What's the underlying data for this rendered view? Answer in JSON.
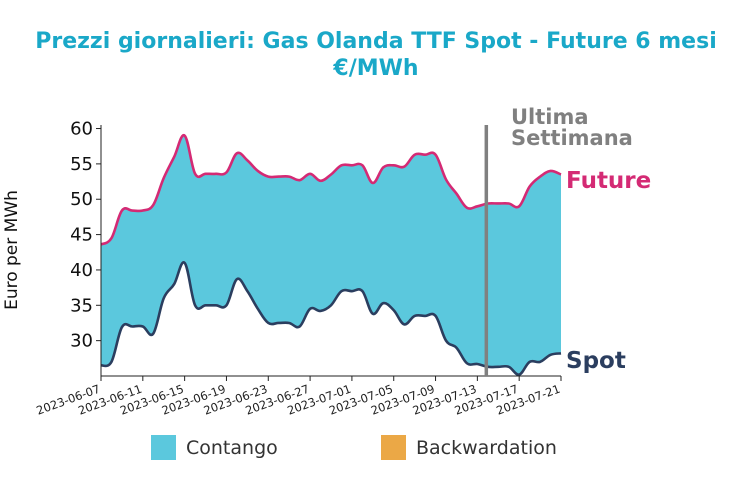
{
  "chart_data": {
    "type": "area",
    "title": "Prezzi giornalieri: Gas Olanda TTF Spot - Future 6 mesi",
    "subtitle": "€/MWh",
    "ylabel": "Euro per MWh",
    "xlabel": "",
    "ylim": [
      25,
      60.5
    ],
    "yticks": [
      30,
      35,
      40,
      45,
      50,
      55,
      60
    ],
    "x": [
      "2023-06-07",
      "2023-06-08",
      "2023-06-09",
      "2023-06-10",
      "2023-06-11",
      "2023-06-12",
      "2023-06-13",
      "2023-06-14",
      "2023-06-15",
      "2023-06-16",
      "2023-06-17",
      "2023-06-18",
      "2023-06-19",
      "2023-06-20",
      "2023-06-21",
      "2023-06-22",
      "2023-06-23",
      "2023-06-24",
      "2023-06-25",
      "2023-06-26",
      "2023-06-27",
      "2023-06-28",
      "2023-06-29",
      "2023-06-30",
      "2023-07-01",
      "2023-07-02",
      "2023-07-03",
      "2023-07-04",
      "2023-07-05",
      "2023-07-06",
      "2023-07-07",
      "2023-07-08",
      "2023-07-09",
      "2023-07-10",
      "2023-07-11",
      "2023-07-12",
      "2023-07-13",
      "2023-07-14",
      "2023-07-15",
      "2023-07-16",
      "2023-07-17",
      "2023-07-18",
      "2023-07-19",
      "2023-07-20",
      "2023-07-21"
    ],
    "xticks": [
      "2023-06-07",
      "2023-06-11",
      "2023-06-15",
      "2023-06-19",
      "2023-06-23",
      "2023-06-27",
      "2023-07-01",
      "2023-07-05",
      "2023-07-09",
      "2023-07-13",
      "2023-07-17",
      "2023-07-21"
    ],
    "series": [
      {
        "name": "Future",
        "color": "#d42a74",
        "values": [
          43.6,
          44.5,
          48.4,
          48.4,
          48.4,
          49.2,
          53.0,
          56.0,
          59.0,
          53.6,
          53.6,
          53.6,
          53.8,
          56.5,
          55.5,
          54.0,
          53.2,
          53.2,
          53.2,
          52.7,
          53.6,
          52.6,
          53.5,
          54.8,
          54.8,
          54.8,
          52.3,
          54.5,
          54.8,
          54.6,
          56.3,
          56.3,
          56.3,
          52.8,
          50.8,
          48.8,
          49.0,
          49.4,
          49.4,
          49.4,
          49.0,
          51.8,
          53.2,
          54.0,
          53.5
        ]
      },
      {
        "name": "Spot",
        "color": "#2b3e5f",
        "values": [
          26.5,
          27.0,
          31.9,
          32.0,
          32.0,
          31.0,
          36.0,
          38.0,
          41.0,
          35.0,
          35.0,
          35.0,
          35.0,
          38.7,
          37.0,
          34.5,
          32.5,
          32.5,
          32.5,
          32.0,
          34.5,
          34.2,
          35.0,
          37.0,
          37.0,
          37.0,
          33.8,
          35.3,
          34.3,
          32.3,
          33.5,
          33.5,
          33.5,
          30.0,
          29.0,
          26.8,
          26.7,
          26.3,
          26.3,
          26.3,
          25.2,
          27.0,
          27.0,
          28.0,
          28.2
        ]
      }
    ],
    "legend": [
      {
        "label": "Contango",
        "color": "#5bc8dd"
      },
      {
        "label": "Backwardation",
        "color": "#eba846"
      }
    ],
    "vline": {
      "x": "2023-07-14",
      "label_line1": "Ultima",
      "label_line2": "Settimana",
      "color": "#808080"
    },
    "grid": false,
    "legend_position": "bottom"
  }
}
